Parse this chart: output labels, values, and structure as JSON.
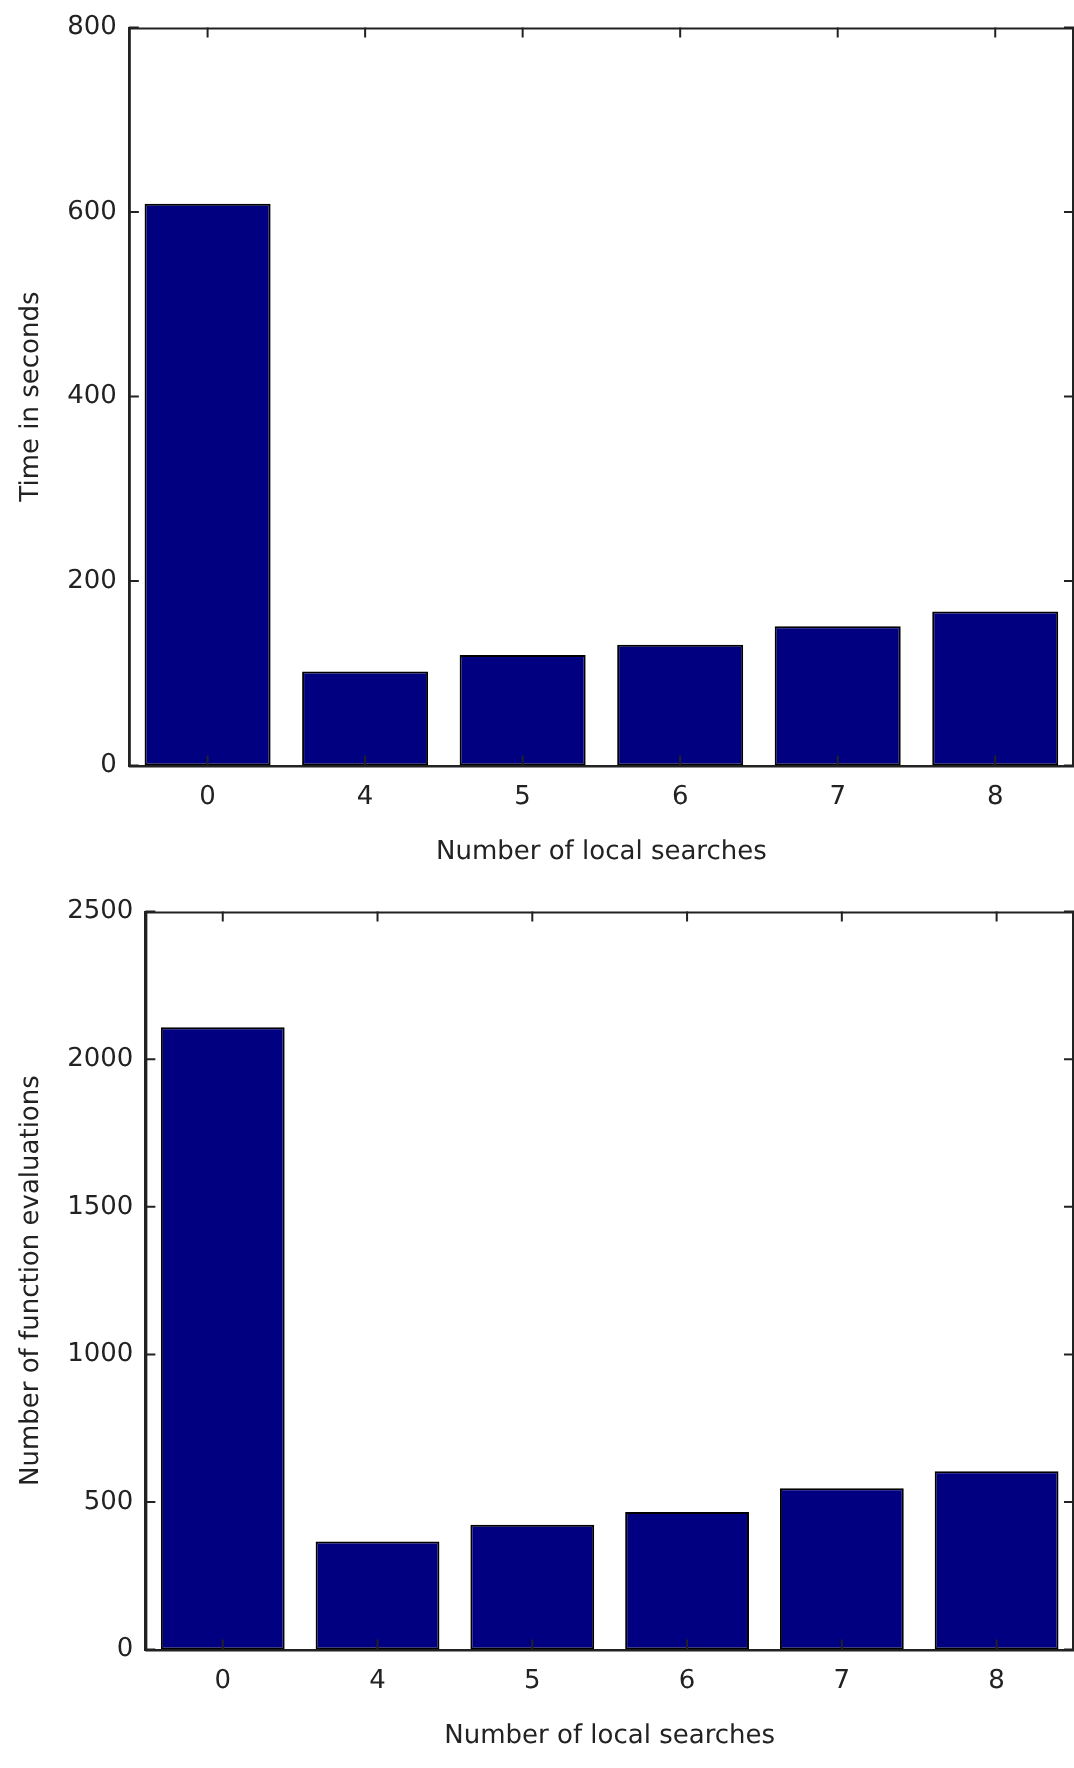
{
  "chart_data": [
    {
      "type": "bar",
      "ylabel": "Time in seconds",
      "xlabel": "Number of local searches",
      "categories": [
        "0",
        "4",
        "5",
        "6",
        "7",
        "8"
      ],
      "values": [
        609,
        102,
        120,
        131,
        151,
        167
      ],
      "color": "#000080",
      "ylim": [
        0,
        800
      ],
      "yticks": [
        0,
        200,
        400,
        600,
        800
      ],
      "grid": false,
      "legend": false
    },
    {
      "type": "bar",
      "ylabel": "Number of function evaluations",
      "xlabel": "Number of local searches",
      "categories": [
        "0",
        "4",
        "5",
        "6",
        "7",
        "8"
      ],
      "values": [
        2108,
        366,
        423,
        466,
        547,
        604
      ],
      "color": "#000080",
      "ylim": [
        0,
        2500
      ],
      "yticks": [
        0,
        500,
        1000,
        1500,
        2000,
        2500
      ],
      "grid": false,
      "legend": false
    }
  ]
}
